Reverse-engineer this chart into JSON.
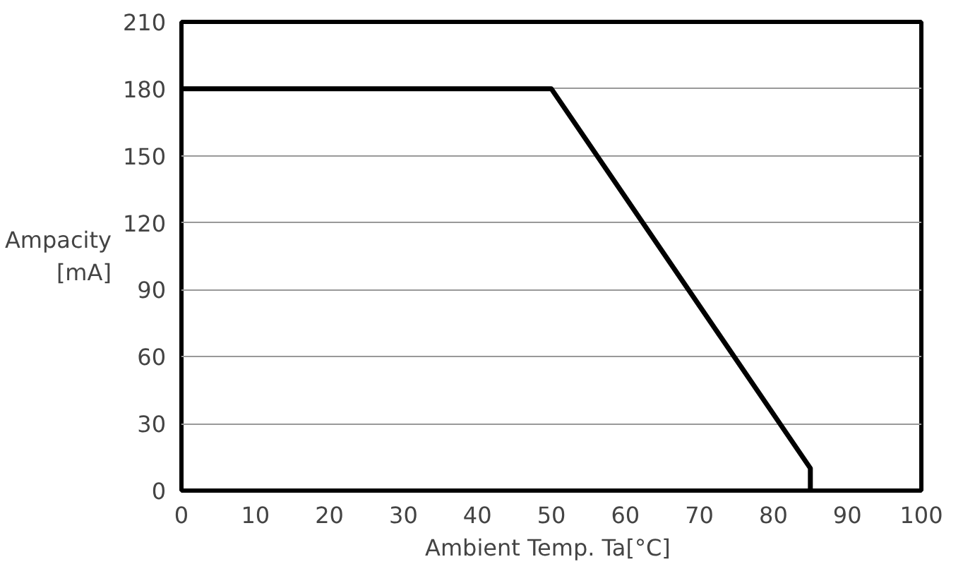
{
  "chart_data": {
    "type": "line",
    "xlabel": "Ambient Temp.  Ta[°C]",
    "ylabel": "Ampacity\n[mA]",
    "series": [
      {
        "color": "#000000",
        "x": [
          0,
          50,
          85,
          85
        ],
        "values": [
          180,
          180,
          10,
          0
        ]
      }
    ],
    "xlim": [
      0,
      100
    ],
    "xticks": [
      0,
      10,
      20,
      30,
      40,
      50,
      60,
      70,
      80,
      90,
      100
    ],
    "ylim": [
      0,
      210
    ],
    "yticks": [
      0,
      30,
      60,
      90,
      120,
      150,
      180,
      210
    ],
    "grid": "y",
    "line_style": "solid"
  }
}
